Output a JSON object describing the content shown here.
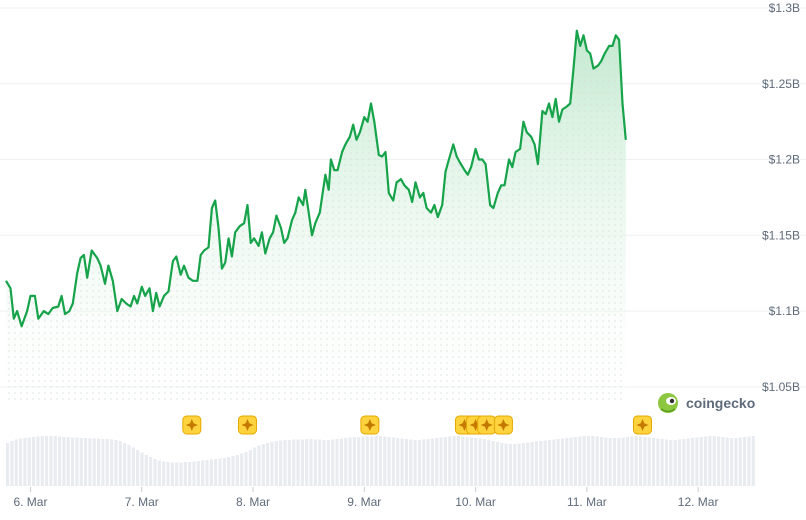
{
  "brand": {
    "name": "coingecko",
    "logo_icon": "gecko-logo-icon"
  },
  "colors": {
    "line": "#16a34a",
    "area_top": "#bfe8cc",
    "volume": "#e8ebef",
    "marker": "#ffd33d",
    "marker_border": "#e6a800"
  },
  "chart_data": {
    "type": "area",
    "ylim": [
      1.04,
      1.3
    ],
    "yticks": [
      {
        "value": 1.3,
        "label": "$1.3B"
      },
      {
        "value": 1.25,
        "label": "$1.25B"
      },
      {
        "value": 1.2,
        "label": "$1.2B"
      },
      {
        "value": 1.15,
        "label": "$1.15B"
      },
      {
        "value": 1.1,
        "label": "$1.1B"
      },
      {
        "value": 1.05,
        "label": "$1.05B"
      }
    ],
    "xlim": [
      5.78,
      12.52
    ],
    "xticks": [
      {
        "value": 6,
        "label": "6. Mar"
      },
      {
        "value": 7,
        "label": "7. Mar"
      },
      {
        "value": 8,
        "label": "8. Mar"
      },
      {
        "value": 9,
        "label": "9. Mar"
      },
      {
        "value": 10,
        "label": "10. Mar"
      },
      {
        "value": 11,
        "label": "11. Mar"
      },
      {
        "value": 12,
        "label": "12. Mar"
      }
    ],
    "grid": true,
    "series": [
      {
        "points": [
          [
            5.78,
            1.12
          ],
          [
            5.82,
            1.115
          ],
          [
            5.85,
            1.095
          ],
          [
            5.88,
            1.1
          ],
          [
            5.92,
            1.09
          ],
          [
            5.97,
            1.1
          ],
          [
            6.0,
            1.11
          ],
          [
            6.04,
            1.11
          ],
          [
            6.07,
            1.095
          ],
          [
            6.12,
            1.1
          ],
          [
            6.16,
            1.098
          ],
          [
            6.2,
            1.102
          ],
          [
            6.25,
            1.103
          ],
          [
            6.28,
            1.11
          ],
          [
            6.31,
            1.098
          ],
          [
            6.35,
            1.1
          ],
          [
            6.38,
            1.105
          ],
          [
            6.42,
            1.125
          ],
          [
            6.45,
            1.135
          ],
          [
            6.48,
            1.137
          ],
          [
            6.51,
            1.122
          ],
          [
            6.55,
            1.14
          ],
          [
            6.6,
            1.135
          ],
          [
            6.63,
            1.13
          ],
          [
            6.67,
            1.118
          ],
          [
            6.7,
            1.13
          ],
          [
            6.74,
            1.12
          ],
          [
            6.78,
            1.1
          ],
          [
            6.82,
            1.108
          ],
          [
            6.86,
            1.105
          ],
          [
            6.9,
            1.103
          ],
          [
            6.93,
            1.11
          ],
          [
            6.96,
            1.105
          ],
          [
            7.0,
            1.116
          ],
          [
            7.03,
            1.11
          ],
          [
            7.07,
            1.115
          ],
          [
            7.1,
            1.1
          ],
          [
            7.13,
            1.112
          ],
          [
            7.16,
            1.103
          ],
          [
            7.2,
            1.11
          ],
          [
            7.24,
            1.113
          ],
          [
            7.28,
            1.133
          ],
          [
            7.31,
            1.136
          ],
          [
            7.35,
            1.124
          ],
          [
            7.38,
            1.13
          ],
          [
            7.42,
            1.122
          ],
          [
            7.46,
            1.12
          ],
          [
            7.5,
            1.12
          ],
          [
            7.53,
            1.137
          ],
          [
            7.56,
            1.14
          ],
          [
            7.6,
            1.142
          ],
          [
            7.63,
            1.168
          ],
          [
            7.66,
            1.173
          ],
          [
            7.69,
            1.155
          ],
          [
            7.72,
            1.128
          ],
          [
            7.75,
            1.132
          ],
          [
            7.78,
            1.148
          ],
          [
            7.81,
            1.136
          ],
          [
            7.84,
            1.152
          ],
          [
            7.88,
            1.156
          ],
          [
            7.92,
            1.158
          ],
          [
            7.95,
            1.17
          ],
          [
            7.98,
            1.145
          ],
          [
            8.01,
            1.148
          ],
          [
            8.05,
            1.143
          ],
          [
            8.08,
            1.152
          ],
          [
            8.11,
            1.138
          ],
          [
            8.15,
            1.148
          ],
          [
            8.18,
            1.152
          ],
          [
            8.21,
            1.163
          ],
          [
            8.25,
            1.155
          ],
          [
            8.28,
            1.145
          ],
          [
            8.31,
            1.148
          ],
          [
            8.35,
            1.16
          ],
          [
            8.38,
            1.165
          ],
          [
            8.41,
            1.175
          ],
          [
            8.45,
            1.17
          ],
          [
            8.47,
            1.18
          ],
          [
            8.5,
            1.165
          ],
          [
            8.53,
            1.15
          ],
          [
            8.56,
            1.158
          ],
          [
            8.6,
            1.165
          ],
          [
            8.62,
            1.175
          ],
          [
            8.65,
            1.19
          ],
          [
            8.68,
            1.18
          ],
          [
            8.7,
            1.2
          ],
          [
            8.73,
            1.193
          ],
          [
            8.76,
            1.193
          ],
          [
            8.8,
            1.205
          ],
          [
            8.83,
            1.21
          ],
          [
            8.87,
            1.215
          ],
          [
            8.9,
            1.223
          ],
          [
            8.93,
            1.213
          ],
          [
            8.96,
            1.218
          ],
          [
            9.0,
            1.228
          ],
          [
            9.03,
            1.225
          ],
          [
            9.06,
            1.237
          ],
          [
            9.09,
            1.225
          ],
          [
            9.13,
            1.203
          ],
          [
            9.16,
            1.202
          ],
          [
            9.19,
            1.205
          ],
          [
            9.22,
            1.178
          ],
          [
            9.26,
            1.173
          ],
          [
            9.29,
            1.185
          ],
          [
            9.33,
            1.187
          ],
          [
            9.36,
            1.183
          ],
          [
            9.4,
            1.18
          ],
          [
            9.43,
            1.172
          ],
          [
            9.46,
            1.185
          ],
          [
            9.5,
            1.175
          ],
          [
            9.53,
            1.178
          ],
          [
            9.56,
            1.168
          ],
          [
            9.6,
            1.165
          ],
          [
            9.63,
            1.17
          ],
          [
            9.66,
            1.162
          ],
          [
            9.7,
            1.17
          ],
          [
            9.73,
            1.192
          ],
          [
            9.76,
            1.2
          ],
          [
            9.8,
            1.21
          ],
          [
            9.83,
            1.202
          ],
          [
            9.86,
            1.198
          ],
          [
            9.9,
            1.193
          ],
          [
            9.93,
            1.19
          ],
          [
            9.96,
            1.195
          ],
          [
            10.0,
            1.207
          ],
          [
            10.03,
            1.2
          ],
          [
            10.06,
            1.2
          ],
          [
            10.09,
            1.197
          ],
          [
            10.13,
            1.17
          ],
          [
            10.16,
            1.168
          ],
          [
            10.2,
            1.178
          ],
          [
            10.23,
            1.183
          ],
          [
            10.26,
            1.183
          ],
          [
            10.3,
            1.2
          ],
          [
            10.33,
            1.195
          ],
          [
            10.36,
            1.205
          ],
          [
            10.4,
            1.207
          ],
          [
            10.43,
            1.225
          ],
          [
            10.46,
            1.218
          ],
          [
            10.5,
            1.215
          ],
          [
            10.53,
            1.21
          ],
          [
            10.56,
            1.197
          ],
          [
            10.6,
            1.232
          ],
          [
            10.63,
            1.23
          ],
          [
            10.66,
            1.237
          ],
          [
            10.69,
            1.228
          ],
          [
            10.72,
            1.24
          ],
          [
            10.75,
            1.225
          ],
          [
            10.78,
            1.233
          ],
          [
            10.82,
            1.235
          ],
          [
            10.85,
            1.237
          ],
          [
            10.88,
            1.26
          ],
          [
            10.91,
            1.285
          ],
          [
            10.94,
            1.275
          ],
          [
            10.97,
            1.282
          ],
          [
            11.0,
            1.272
          ],
          [
            11.03,
            1.27
          ],
          [
            11.06,
            1.26
          ],
          [
            11.1,
            1.262
          ],
          [
            11.13,
            1.265
          ],
          [
            11.16,
            1.27
          ],
          [
            11.2,
            1.275
          ],
          [
            11.23,
            1.275
          ],
          [
            11.26,
            1.282
          ],
          [
            11.29,
            1.279
          ],
          [
            11.32,
            1.237
          ],
          [
            11.35,
            1.213
          ]
        ]
      }
    ],
    "volume": {
      "ylim": [
        0,
        1
      ],
      "bars": [
        0.86,
        0.9,
        0.93,
        0.95,
        0.96,
        0.97,
        0.98,
        0.99,
        1.0,
        1.0,
        1.0,
        1.0,
        0.99,
        0.98,
        0.98,
        0.97,
        0.97,
        0.96,
        0.96,
        0.95,
        0.95,
        0.95,
        0.94,
        0.94,
        0.93,
        0.92,
        0.9,
        0.86,
        0.82,
        0.77,
        0.72,
        0.67,
        0.62,
        0.58,
        0.54,
        0.51,
        0.49,
        0.48,
        0.47,
        0.47,
        0.47,
        0.48,
        0.48,
        0.49,
        0.5,
        0.51,
        0.52,
        0.53,
        0.54,
        0.55,
        0.56,
        0.58,
        0.6,
        0.62,
        0.65,
        0.68,
        0.72,
        0.77,
        0.81,
        0.84,
        0.86,
        0.88,
        0.9,
        0.91,
        0.92,
        0.92,
        0.93,
        0.93,
        0.93,
        0.94,
        0.94,
        0.93,
        0.93,
        0.92,
        0.92,
        0.93,
        0.94,
        0.95,
        0.96,
        0.97,
        0.98,
        0.98,
        0.99,
        0.99,
        0.99,
        1.0,
        1.0,
        0.99,
        0.98,
        0.97,
        0.96,
        0.95,
        0.94,
        0.93,
        0.92,
        0.92,
        0.93,
        0.94,
        0.95,
        0.96,
        0.97,
        0.98,
        0.99,
        1.0,
        1.0,
        0.99,
        0.98,
        0.97,
        0.96,
        0.95,
        0.94,
        0.92,
        0.9,
        0.88,
        0.86,
        0.85,
        0.84,
        0.84,
        0.85,
        0.86,
        0.87,
        0.88,
        0.89,
        0.9,
        0.91,
        0.92,
        0.93,
        0.94,
        0.95,
        0.96,
        0.97,
        0.98,
        0.99,
        1.0,
        1.0,
        1.0,
        0.99,
        0.98,
        0.97,
        0.96,
        0.96,
        0.96,
        0.97,
        0.98,
        0.99,
        1.0,
        0.99,
        0.98,
        0.97,
        0.96,
        0.95,
        0.94,
        0.93,
        0.92,
        0.92,
        0.93,
        0.94,
        0.95,
        0.96,
        0.97,
        0.98,
        0.99,
        1.0,
        1.0,
        0.99,
        0.98,
        0.97,
        0.96,
        0.96,
        0.97,
        0.98,
        0.99,
        1.0
      ]
    },
    "events": [
      {
        "x": 7.45,
        "icon": "sparkle-icon"
      },
      {
        "x": 7.95,
        "icon": "sparkle-icon"
      },
      {
        "x": 9.05,
        "icon": "sparkle-icon"
      },
      {
        "x": 9.9,
        "icon": "sparkle-icon"
      },
      {
        "x": 10.0,
        "icon": "sparkle-icon"
      },
      {
        "x": 10.1,
        "icon": "sparkle-icon"
      },
      {
        "x": 10.25,
        "icon": "sparkle-icon"
      },
      {
        "x": 11.5,
        "icon": "sparkle-icon"
      }
    ]
  }
}
